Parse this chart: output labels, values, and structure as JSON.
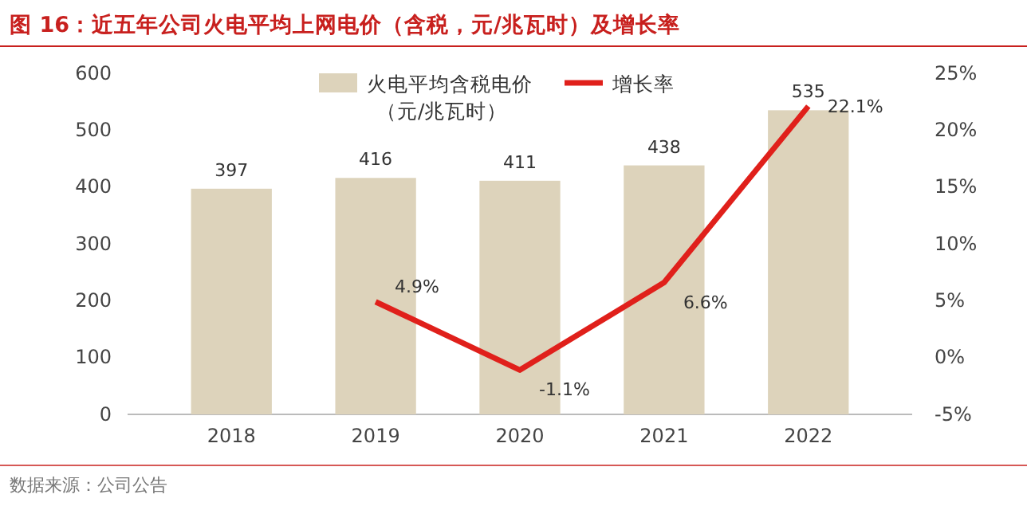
{
  "chart_data": {
    "type": "bar",
    "title": "图 16：近五年公司火电平均上网电价（含税，元/兆瓦时）及增长率",
    "categories": [
      "2018",
      "2019",
      "2020",
      "2021",
      "2022"
    ],
    "series": [
      {
        "name": "火电平均含税电价（元/兆瓦时）",
        "color": "#ddd3bb",
        "values": [
          397,
          416,
          411,
          438,
          535
        ],
        "value_labels": [
          "397",
          "416",
          "411",
          "438",
          "535"
        ]
      },
      {
        "name": "增长率",
        "type": "line",
        "axis": "y2",
        "color": "#e0201b",
        "values": [
          null,
          4.9,
          -1.1,
          6.6,
          22.1
        ],
        "value_labels": [
          null,
          "4.9%",
          "-1.1%",
          "6.6%",
          "22.1%"
        ]
      }
    ],
    "ylim": [
      0,
      600
    ],
    "yticks": [
      0,
      100,
      200,
      300,
      400,
      500,
      600
    ],
    "y2lim": [
      -5,
      25
    ],
    "y2ticks": [
      {
        "value": -5,
        "label": "-5%"
      },
      {
        "value": 0,
        "label": "0%"
      },
      {
        "value": 5,
        "label": "5%"
      },
      {
        "value": 10,
        "label": "10%"
      },
      {
        "value": 15,
        "label": "15%"
      },
      {
        "value": 20,
        "label": "20%"
      },
      {
        "value": 25,
        "label": "25%"
      }
    ],
    "grid": false,
    "legend": "top",
    "line_style": "solid",
    "marker": "none",
    "annotations": [
      "数据来源：公司公告"
    ]
  }
}
